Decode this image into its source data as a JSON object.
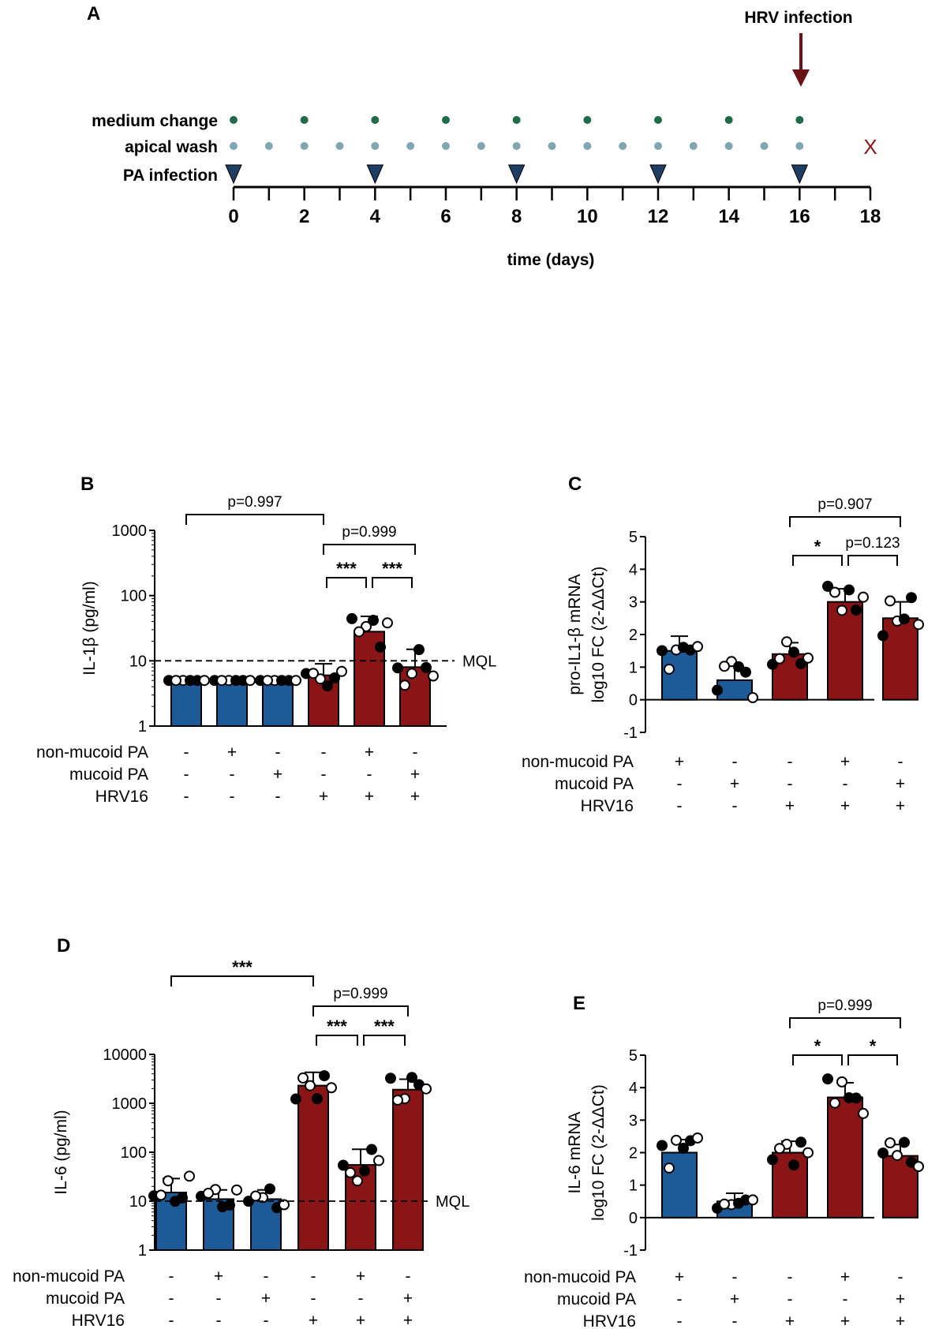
{
  "colors": {
    "blue": "#1c5b98",
    "red": "#8a1517",
    "medium_dot": "#1f6b4b",
    "wash_dot": "#7fa6b1",
    "triangle": "#1d3d63",
    "arrow": "#6b1218"
  },
  "chart_data": [
    {
      "panel": "A",
      "type": "timeline",
      "title": "HRV infection",
      "xlabel": "time (days)",
      "x_ticks": [
        0,
        2,
        4,
        6,
        8,
        10,
        12,
        14,
        16,
        18
      ],
      "xlim": [
        0,
        18
      ],
      "rows": [
        {
          "label": "medium change",
          "days": [
            0,
            2,
            4,
            6,
            8,
            10,
            12,
            14,
            16
          ]
        },
        {
          "label": "apical wash",
          "days": [
            0,
            1,
            2,
            3,
            4,
            5,
            6,
            7,
            8,
            9,
            10,
            11,
            12,
            13,
            14,
            15,
            16
          ]
        },
        {
          "label": "PA infection",
          "days": [
            0,
            4,
            8,
            12,
            16
          ]
        }
      ],
      "hrv_infection_day": 16,
      "end_marker": {
        "day": 18,
        "symbol": "X"
      }
    },
    {
      "panel": "B",
      "type": "bar",
      "ylabel": "IL-1β (pg/ml)",
      "yscale": "log",
      "ylim": [
        1,
        1000
      ],
      "y_ticks": [
        "1",
        "10",
        "100",
        "1000"
      ],
      "mql": {
        "value": 10,
        "label": "MQL"
      },
      "values": [
        5,
        5,
        5,
        6,
        28,
        8
      ],
      "errors": [
        0,
        0,
        0,
        3,
        20,
        7
      ],
      "colors": [
        "blue",
        "blue",
        "blue",
        "red",
        "red",
        "red"
      ],
      "conditions": [
        {
          "label": "non-mucoid PA",
          "marks": [
            "-",
            "+",
            "-",
            "-",
            "+",
            "-"
          ]
        },
        {
          "label": "mucoid PA",
          "marks": [
            "-",
            "-",
            "+",
            "-",
            "-",
            "+"
          ]
        },
        {
          "label": "HRV16",
          "marks": [
            "-",
            "-",
            "-",
            "+",
            "+",
            "+"
          ]
        }
      ],
      "comparisons": [
        {
          "from": 0,
          "to": 3,
          "label": "p=0.997",
          "level": 2
        },
        {
          "from": 3,
          "to": 5,
          "label": "p=0.999",
          "level": 1
        },
        {
          "from": 3,
          "to": 4,
          "label": "***",
          "level": 0
        },
        {
          "from": 4,
          "to": 5,
          "label": "***",
          "level": 0
        }
      ]
    },
    {
      "panel": "C",
      "type": "bar",
      "ylabel": "pro-IL1-β mRNA",
      "ylabel2": "log10 FC (2-ΔΔCt)",
      "yscale": "linear",
      "ylim": [
        -1,
        5
      ],
      "y_ticks": [
        "-1",
        "0",
        "1",
        "2",
        "3",
        "4",
        "5"
      ],
      "values": [
        1.5,
        0.6,
        1.4,
        3.0,
        2.5
      ],
      "errors": [
        0.45,
        0.45,
        0.35,
        0.4,
        0.5
      ],
      "colors": [
        "blue",
        "blue",
        "red",
        "red",
        "red"
      ],
      "conditions": [
        {
          "label": "non-mucoid PA",
          "marks": [
            "+",
            "-",
            "-",
            "+",
            "-"
          ]
        },
        {
          "label": "mucoid PA",
          "marks": [
            "-",
            "+",
            "-",
            "-",
            "+"
          ]
        },
        {
          "label": "HRV16",
          "marks": [
            "-",
            "-",
            "+",
            "+",
            "+"
          ]
        }
      ],
      "comparisons": [
        {
          "from": 2,
          "to": 4,
          "label": "p=0.907",
          "level": 1
        },
        {
          "from": 2,
          "to": 3,
          "label": "*",
          "level": 0
        },
        {
          "from": 3,
          "to": 4,
          "label": "p=0.123",
          "level": 0
        }
      ]
    },
    {
      "panel": "D",
      "type": "bar",
      "ylabel": "IL-6 (pg/ml)",
      "yscale": "log",
      "ylim": [
        1,
        10000
      ],
      "y_ticks": [
        "1",
        "10",
        "100",
        "1000",
        "10000"
      ],
      "mql": {
        "value": 10,
        "label": "MQL"
      },
      "values": [
        15,
        11,
        11,
        2300,
        55,
        1900
      ],
      "errors": [
        14,
        6,
        6,
        2000,
        60,
        1200
      ],
      "colors": [
        "blue",
        "blue",
        "blue",
        "red",
        "red",
        "red"
      ],
      "conditions": [
        {
          "label": "non-mucoid PA",
          "marks": [
            "-",
            "+",
            "-",
            "-",
            "+",
            "-"
          ]
        },
        {
          "label": "mucoid PA",
          "marks": [
            "-",
            "-",
            "+",
            "-",
            "-",
            "+"
          ]
        },
        {
          "label": "HRV16",
          "marks": [
            "-",
            "-",
            "-",
            "+",
            "+",
            "+"
          ]
        }
      ],
      "comparisons": [
        {
          "from": 0,
          "to": 3,
          "label": "***",
          "level": 2
        },
        {
          "from": 3,
          "to": 5,
          "label": "p=0.999",
          "level": 1
        },
        {
          "from": 3,
          "to": 4,
          "label": "***",
          "level": 0
        },
        {
          "from": 4,
          "to": 5,
          "label": "***",
          "level": 0
        }
      ]
    },
    {
      "panel": "E",
      "type": "bar",
      "ylabel": "IL-6 mRNA",
      "ylabel2": "log10 FC (2-ΔΔCt)",
      "yscale": "linear",
      "ylim": [
        -1,
        5
      ],
      "y_ticks": [
        "-1",
        "0",
        "1",
        "2",
        "3",
        "4",
        "5"
      ],
      "values": [
        2.0,
        0.5,
        2.0,
        3.7,
        1.9
      ],
      "errors": [
        0.4,
        0.25,
        0.35,
        0.45,
        0.35
      ],
      "colors": [
        "blue",
        "blue",
        "red",
        "red",
        "red"
      ],
      "conditions": [
        {
          "label": "non-mucoid PA",
          "marks": [
            "+",
            "-",
            "-",
            "+",
            "-"
          ]
        },
        {
          "label": "mucoid PA",
          "marks": [
            "-",
            "+",
            "-",
            "-",
            "+"
          ]
        },
        {
          "label": "HRV16",
          "marks": [
            "-",
            "-",
            "+",
            "+",
            "+"
          ]
        }
      ],
      "comparisons": [
        {
          "from": 2,
          "to": 4,
          "label": "p=0.999",
          "level": 1
        },
        {
          "from": 2,
          "to": 3,
          "label": "*",
          "level": 0
        },
        {
          "from": 3,
          "to": 4,
          "label": "*",
          "level": 0
        }
      ]
    }
  ]
}
